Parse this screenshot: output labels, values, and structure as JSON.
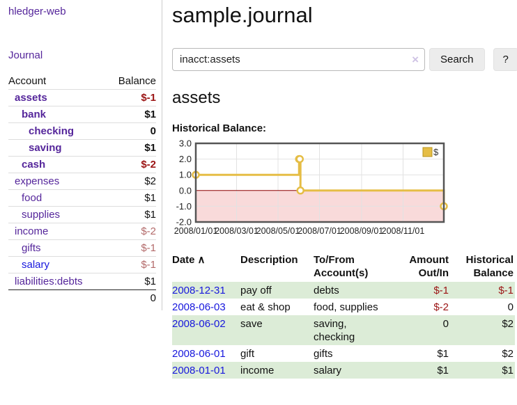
{
  "app": {
    "brand": "hledger-web",
    "nav": {
      "journal": "Journal"
    }
  },
  "sidebar": {
    "headers": {
      "account": "Account",
      "balance": "Balance"
    },
    "rows": [
      {
        "account": "assets",
        "balance": "$-1"
      },
      {
        "account": "bank",
        "balance": "$1"
      },
      {
        "account": "checking",
        "balance": "0"
      },
      {
        "account": "saving",
        "balance": "$1"
      },
      {
        "account": "cash",
        "balance": "$-2"
      },
      {
        "account": "expenses",
        "balance": "$2"
      },
      {
        "account": "food",
        "balance": "$1"
      },
      {
        "account": "supplies",
        "balance": "$1"
      },
      {
        "account": "income",
        "balance": "$-2"
      },
      {
        "account": "gifts",
        "balance": "$-1"
      },
      {
        "account": "salary",
        "balance": "$-1"
      },
      {
        "account": "liabilities:debts",
        "balance": "$1"
      }
    ],
    "total": "0"
  },
  "main": {
    "title": "sample.journal",
    "search": {
      "value": "inacct:assets",
      "clear_icon": "×",
      "search_label": "Search",
      "help_label": "?"
    },
    "account_heading": "assets",
    "chart_heading": "Historical Balance:"
  },
  "chart_data": {
    "type": "line",
    "style": "step-after",
    "title": "Historical Balance",
    "series": [
      {
        "name": "$",
        "color": "#e5bd45",
        "points": [
          {
            "date": "2008-01-01",
            "value": 1
          },
          {
            "date": "2008-06-01",
            "value": 2
          },
          {
            "date": "2008-06-02",
            "value": 2
          },
          {
            "date": "2008-06-03",
            "value": 0
          },
          {
            "date": "2008-12-31",
            "value": -1
          }
        ]
      }
    ],
    "xlim": [
      "2008-01-01",
      "2008-12-31"
    ],
    "ylim": [
      -2,
      3
    ],
    "x_ticks": [
      {
        "date": "2008-01-01",
        "label": "2008/01/01"
      },
      {
        "date": "2008-03-01",
        "label": "2008/03/01"
      },
      {
        "date": "2008-05-01",
        "label": "2008/05/01"
      },
      {
        "date": "2008-07-01",
        "label": "2008/07/01"
      },
      {
        "date": "2008-09-01",
        "label": "2008/09/01"
      },
      {
        "date": "2008-11-01",
        "label": "2008/11/01"
      }
    ],
    "x_grid": [
      "2008-03-01",
      "2008-05-01",
      "2008-07-01",
      "2008-09-01",
      "2008-11-01"
    ],
    "y_ticks": [
      {
        "value": 3,
        "label": "3.0"
      },
      {
        "value": 2,
        "label": "2.0"
      },
      {
        "value": 1,
        "label": "1.0"
      },
      {
        "value": 0,
        "label": "0.0"
      },
      {
        "value": -1,
        "label": "-1.0"
      },
      {
        "value": -2,
        "label": "-2.0"
      }
    ],
    "grid": true,
    "legend": {
      "label": "$",
      "position": "top-right"
    },
    "colors": {
      "line": "#e5bd45",
      "marker_fill": "#ffffff",
      "negative_region": "#f9dada",
      "zero_line": "#8b0000",
      "plot_border": "#555555",
      "gridline": "#e2e2e2",
      "legend_square_border": "#b8941f"
    }
  },
  "transactions": {
    "headers": {
      "date": "Date",
      "sort_icon": "∧",
      "description": "Description",
      "accounts": "To/From Account(s)",
      "amount": "Amount Out/In",
      "balance": "Historical Balance"
    },
    "rows": [
      {
        "date": "2008-12-31",
        "description": "pay off",
        "accounts": "debts",
        "amount": "$-1",
        "balance": "$-1"
      },
      {
        "date": "2008-06-03",
        "description": "eat & shop",
        "accounts": "food, supplies",
        "amount": "$-2",
        "balance": "0"
      },
      {
        "date": "2008-06-02",
        "description": "save",
        "accounts": "saving, checking",
        "amount": "0",
        "balance": "$2"
      },
      {
        "date": "2008-06-01",
        "description": "gift",
        "accounts": "gifts",
        "amount": "$1",
        "balance": "$2"
      },
      {
        "date": "2008-01-01",
        "description": "income",
        "accounts": "salary",
        "amount": "$1",
        "balance": "$1"
      }
    ]
  }
}
